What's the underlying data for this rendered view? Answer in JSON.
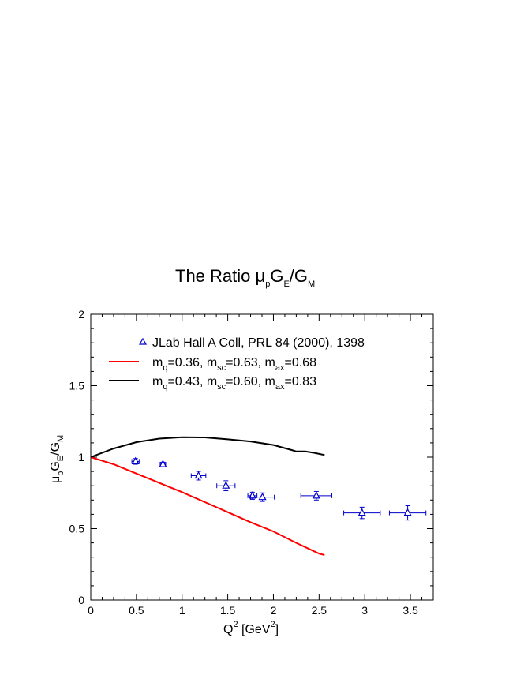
{
  "chart_data": {
    "type": "line",
    "title": {
      "prefix": "The Ratio ",
      "mu": "μ",
      "mu_sub": "p",
      "g1": "G",
      "g1_sub": "E",
      "slash": "/G",
      "g2_sub": "M"
    },
    "xlabel": {
      "q": "Q",
      "sup": "2",
      "rest": " [GeV",
      "sup2": "2",
      "close": "]"
    },
    "ylabel": {
      "mu": "μ",
      "mu_sub": "p",
      "g1": "G",
      "g1_sub": "E",
      "slash": "/G",
      "g2_sub": "M"
    },
    "xlim": [
      0,
      3.75
    ],
    "ylim": [
      0,
      2
    ],
    "x_ticks": [
      0,
      0.5,
      1,
      1.5,
      2,
      2.5,
      3,
      3.5
    ],
    "x_tick_labels": [
      "0",
      "0.5",
      "1",
      "1.5",
      "2",
      "2.5",
      "3",
      "3.5"
    ],
    "y_ticks": [
      0,
      0.5,
      1,
      1.5,
      2
    ],
    "y_tick_labels": [
      "0",
      "0.5",
      "1",
      "1.5",
      "2"
    ],
    "legend_position": "top-left",
    "data_points": {
      "name": "JLab Hall A Coll,  PRL 84 (2000), 1398",
      "color": "#0000cc",
      "points": [
        {
          "x": 0.49,
          "y": 0.97,
          "xerr": 0.04,
          "yerr": 0.02
        },
        {
          "x": 0.79,
          "y": 0.95,
          "xerr": 0.03,
          "yerr": 0.015
        },
        {
          "x": 1.18,
          "y": 0.87,
          "xerr": 0.08,
          "yerr": 0.03
        },
        {
          "x": 1.48,
          "y": 0.8,
          "xerr": 0.1,
          "yerr": 0.035
        },
        {
          "x": 1.77,
          "y": 0.73,
          "xerr": 0.05,
          "yerr": 0.025
        },
        {
          "x": 1.88,
          "y": 0.72,
          "xerr": 0.13,
          "yerr": 0.03
        },
        {
          "x": 2.47,
          "y": 0.73,
          "xerr": 0.17,
          "yerr": 0.03
        },
        {
          "x": 2.97,
          "y": 0.61,
          "xerr": 0.2,
          "yerr": 0.04
        },
        {
          "x": 3.47,
          "y": 0.61,
          "xerr": 0.2,
          "yerr": 0.05
        }
      ]
    },
    "series": [
      {
        "name": {
          "m": "m",
          "q": "q",
          "v1": "=0.36, m",
          "sc": "sc",
          "v2": "=0.63, m",
          "ax": "ax",
          "v3": "=0.68"
        },
        "color": "#ff0000",
        "x": [
          0,
          0.25,
          0.5,
          0.75,
          1.0,
          1.25,
          1.5,
          1.75,
          2.0,
          2.25,
          2.5,
          2.56
        ],
        "y": [
          1.0,
          0.95,
          0.885,
          0.82,
          0.755,
          0.685,
          0.615,
          0.545,
          0.48,
          0.4,
          0.325,
          0.315
        ]
      },
      {
        "name": {
          "m": "m",
          "q": "q",
          "v1": "=0.43, m",
          "sc": "sc",
          "v2": "=0.60, m",
          "ax": "ax",
          "v3": "=0.83"
        },
        "color": "#000000",
        "x": [
          0,
          0.25,
          0.5,
          0.75,
          1.0,
          1.25,
          1.5,
          1.75,
          2.0,
          2.2,
          2.25,
          2.35,
          2.45,
          2.56
        ],
        "y": [
          1.0,
          1.06,
          1.105,
          1.13,
          1.14,
          1.138,
          1.125,
          1.11,
          1.085,
          1.05,
          1.04,
          1.04,
          1.03,
          1.015
        ]
      }
    ]
  }
}
